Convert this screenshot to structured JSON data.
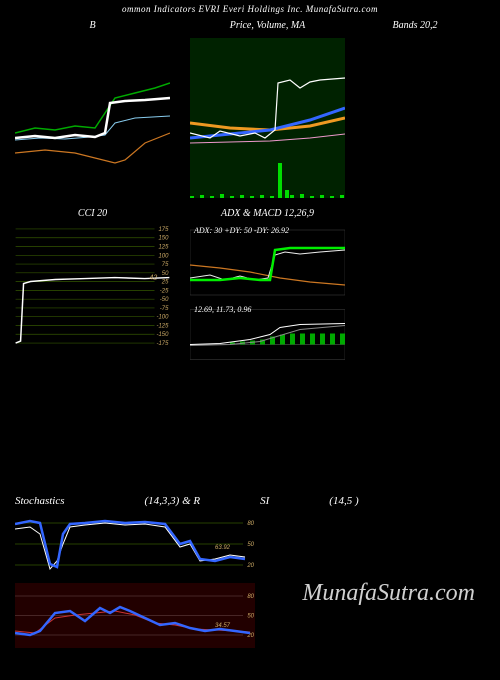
{
  "header": "ommon Indicators EVRI Everi Holdings Inc. MunafaSutra.com",
  "panel_b": {
    "title": "B",
    "bg": "#000000",
    "lines": {
      "green": {
        "color": "#00aa00",
        "width": 1.5,
        "pts": [
          [
            0,
            95
          ],
          [
            20,
            90
          ],
          [
            40,
            92
          ],
          [
            60,
            88
          ],
          [
            80,
            90
          ],
          [
            100,
            60
          ],
          [
            120,
            55
          ],
          [
            140,
            50
          ],
          [
            155,
            45
          ]
        ]
      },
      "orange": {
        "color": "#cc7722",
        "width": 1.2,
        "pts": [
          [
            0,
            115
          ],
          [
            30,
            112
          ],
          [
            60,
            115
          ],
          [
            80,
            120
          ],
          [
            100,
            125
          ],
          [
            110,
            122
          ],
          [
            130,
            105
          ],
          [
            155,
            95
          ]
        ]
      },
      "white": {
        "color": "#ffffff",
        "width": 2.5,
        "pts": [
          [
            0,
            100
          ],
          [
            20,
            98
          ],
          [
            40,
            100
          ],
          [
            60,
            97
          ],
          [
            80,
            99
          ],
          [
            90,
            95
          ],
          [
            95,
            65
          ],
          [
            110,
            63
          ],
          [
            130,
            62
          ],
          [
            155,
            60
          ]
        ]
      },
      "cyan": {
        "color": "#88ccee",
        "width": 1,
        "pts": [
          [
            0,
            102
          ],
          [
            25,
            100
          ],
          [
            50,
            101
          ],
          [
            75,
            99
          ],
          [
            90,
            97
          ],
          [
            100,
            85
          ],
          [
            120,
            80
          ],
          [
            155,
            78
          ]
        ]
      }
    }
  },
  "panel_price": {
    "title": "Price, Volume, MA",
    "bg": "#002200",
    "lines": {
      "orange": {
        "color": "#ee9922",
        "width": 3,
        "pts": [
          [
            0,
            85
          ],
          [
            40,
            90
          ],
          [
            80,
            92
          ],
          [
            120,
            88
          ],
          [
            155,
            80
          ]
        ]
      },
      "blue": {
        "color": "#3366ff",
        "width": 3,
        "pts": [
          [
            0,
            100
          ],
          [
            40,
            96
          ],
          [
            80,
            92
          ],
          [
            120,
            82
          ],
          [
            155,
            70
          ]
        ]
      },
      "pink": {
        "color": "#ee99cc",
        "width": 1,
        "pts": [
          [
            0,
            105
          ],
          [
            40,
            104
          ],
          [
            80,
            103
          ],
          [
            120,
            100
          ],
          [
            155,
            96
          ]
        ]
      },
      "white": {
        "color": "#ffffff",
        "width": 1.2,
        "pts": [
          [
            0,
            95
          ],
          [
            20,
            100
          ],
          [
            30,
            93
          ],
          [
            50,
            98
          ],
          [
            65,
            95
          ],
          [
            75,
            100
          ],
          [
            85,
            92
          ],
          [
            88,
            45
          ],
          [
            100,
            42
          ],
          [
            110,
            50
          ],
          [
            120,
            44
          ],
          [
            130,
            42
          ],
          [
            155,
            40
          ]
        ]
      }
    },
    "volume": {
      "color": "#00dd00",
      "bars": [
        [
          0,
          2
        ],
        [
          10,
          3
        ],
        [
          20,
          2
        ],
        [
          30,
          4
        ],
        [
          40,
          2
        ],
        [
          50,
          3
        ],
        [
          60,
          2
        ],
        [
          70,
          3
        ],
        [
          80,
          2
        ],
        [
          88,
          35
        ],
        [
          95,
          8
        ],
        [
          100,
          3
        ],
        [
          110,
          4
        ],
        [
          120,
          2
        ],
        [
          130,
          3
        ],
        [
          140,
          2
        ],
        [
          150,
          3
        ]
      ]
    }
  },
  "panel_bands": {
    "title": "Bands 20,2"
  },
  "panel_cci": {
    "title": "CCI 20",
    "bg": "#000000",
    "grid_color": "#335500",
    "levels": [
      175,
      150,
      125,
      100,
      75,
      50,
      25,
      -25,
      -50,
      -75,
      -100,
      -125,
      -150,
      -175
    ],
    "label_color": "#ccaa66",
    "marker": "42",
    "line": {
      "color": "#ffffff",
      "width": 1.5,
      "pts": [
        [
          0,
          120
        ],
        [
          5,
          118
        ],
        [
          8,
          60
        ],
        [
          15,
          58
        ],
        [
          40,
          56
        ],
        [
          70,
          55
        ],
        [
          100,
          54
        ],
        [
          130,
          55
        ],
        [
          155,
          54
        ]
      ]
    }
  },
  "panel_adx": {
    "title": "ADX & MACD 12,26,9",
    "top_label": "ADX: 30  +DY: 50  -DY: 26.92",
    "bottom_label": "12.69, 11.73, 0.96",
    "top_lines": {
      "green": {
        "color": "#00ee00",
        "width": 2.5,
        "pts": [
          [
            0,
            50
          ],
          [
            30,
            50
          ],
          [
            50,
            48
          ],
          [
            70,
            50
          ],
          [
            80,
            50
          ],
          [
            85,
            20
          ],
          [
            100,
            18
          ],
          [
            130,
            18
          ],
          [
            155,
            18
          ]
        ]
      },
      "white": {
        "color": "#eeeeee",
        "width": 1,
        "pts": [
          [
            0,
            48
          ],
          [
            20,
            45
          ],
          [
            35,
            50
          ],
          [
            50,
            46
          ],
          [
            65,
            50
          ],
          [
            78,
            48
          ],
          [
            85,
            25
          ],
          [
            95,
            22
          ],
          [
            110,
            24
          ],
          [
            130,
            22
          ],
          [
            155,
            20
          ]
        ]
      },
      "orange": {
        "color": "#cc7722",
        "width": 1.2,
        "pts": [
          [
            0,
            35
          ],
          [
            30,
            38
          ],
          [
            60,
            42
          ],
          [
            90,
            48
          ],
          [
            120,
            52
          ],
          [
            155,
            55
          ]
        ]
      }
    },
    "bottom_bars": {
      "color": "#00aa00",
      "pts": [
        [
          40,
          2
        ],
        [
          50,
          3
        ],
        [
          60,
          4
        ],
        [
          70,
          5
        ],
        [
          80,
          8
        ],
        [
          90,
          10
        ],
        [
          100,
          11
        ],
        [
          110,
          11
        ],
        [
          120,
          11
        ],
        [
          130,
          11
        ],
        [
          140,
          11
        ],
        [
          150,
          11
        ]
      ]
    },
    "bottom_lines": {
      "white": {
        "color": "#ffffff",
        "width": 1,
        "pts": [
          [
            0,
            35
          ],
          [
            30,
            34
          ],
          [
            60,
            30
          ],
          [
            80,
            25
          ],
          [
            90,
            18
          ],
          [
            110,
            15
          ],
          [
            155,
            14
          ]
        ]
      },
      "gray": {
        "color": "#888888",
        "width": 1,
        "pts": [
          [
            0,
            36
          ],
          [
            40,
            35
          ],
          [
            70,
            32
          ],
          [
            90,
            26
          ],
          [
            110,
            20
          ],
          [
            155,
            16
          ]
        ]
      }
    }
  },
  "stoch": {
    "title_left": "Stochastics",
    "title_mid": "(14,3,3) & R",
    "title_si": "SI",
    "title_right": "(14,5                        )",
    "bg": "#000000",
    "levels": [
      80,
      50,
      20
    ],
    "marker": "63.92",
    "blue": {
      "color": "#3366ff",
      "width": 2.5,
      "pts": [
        [
          0,
          15
        ],
        [
          15,
          12
        ],
        [
          25,
          14
        ],
        [
          35,
          55
        ],
        [
          42,
          58
        ],
        [
          48,
          25
        ],
        [
          55,
          15
        ],
        [
          70,
          14
        ],
        [
          90,
          12
        ],
        [
          110,
          14
        ],
        [
          130,
          13
        ],
        [
          150,
          15
        ],
        [
          165,
          35
        ],
        [
          175,
          32
        ],
        [
          185,
          50
        ],
        [
          200,
          52
        ],
        [
          215,
          48
        ],
        [
          230,
          50
        ]
      ]
    },
    "white": {
      "color": "#ffffff",
      "width": 1,
      "pts": [
        [
          0,
          20
        ],
        [
          15,
          18
        ],
        [
          25,
          25
        ],
        [
          35,
          60
        ],
        [
          42,
          52
        ],
        [
          48,
          35
        ],
        [
          55,
          18
        ],
        [
          70,
          16
        ],
        [
          90,
          14
        ],
        [
          110,
          16
        ],
        [
          130,
          15
        ],
        [
          150,
          18
        ],
        [
          165,
          38
        ],
        [
          175,
          35
        ],
        [
          185,
          52
        ],
        [
          200,
          50
        ],
        [
          215,
          46
        ],
        [
          230,
          48
        ]
      ]
    }
  },
  "rsi": {
    "bg": "#220000",
    "levels": [
      80,
      50,
      20
    ],
    "marker": "34.57",
    "blue": {
      "color": "#3366ff",
      "width": 2.5,
      "pts": [
        [
          0,
          50
        ],
        [
          15,
          52
        ],
        [
          25,
          48
        ],
        [
          40,
          30
        ],
        [
          55,
          28
        ],
        [
          70,
          38
        ],
        [
          85,
          25
        ],
        [
          95,
          30
        ],
        [
          105,
          24
        ],
        [
          115,
          28
        ],
        [
          130,
          35
        ],
        [
          145,
          42
        ],
        [
          160,
          40
        ],
        [
          175,
          45
        ],
        [
          190,
          48
        ],
        [
          205,
          46
        ],
        [
          220,
          48
        ],
        [
          235,
          50
        ]
      ]
    },
    "red": {
      "color": "#cc3333",
      "width": 1,
      "pts": [
        [
          0,
          48
        ],
        [
          20,
          50
        ],
        [
          40,
          35
        ],
        [
          60,
          32
        ],
        [
          80,
          30
        ],
        [
          100,
          28
        ],
        [
          120,
          32
        ],
        [
          140,
          40
        ],
        [
          160,
          42
        ],
        [
          180,
          46
        ],
        [
          200,
          47
        ],
        [
          220,
          48
        ],
        [
          235,
          49
        ]
      ]
    }
  },
  "watermark": "MunafaSutra.com"
}
